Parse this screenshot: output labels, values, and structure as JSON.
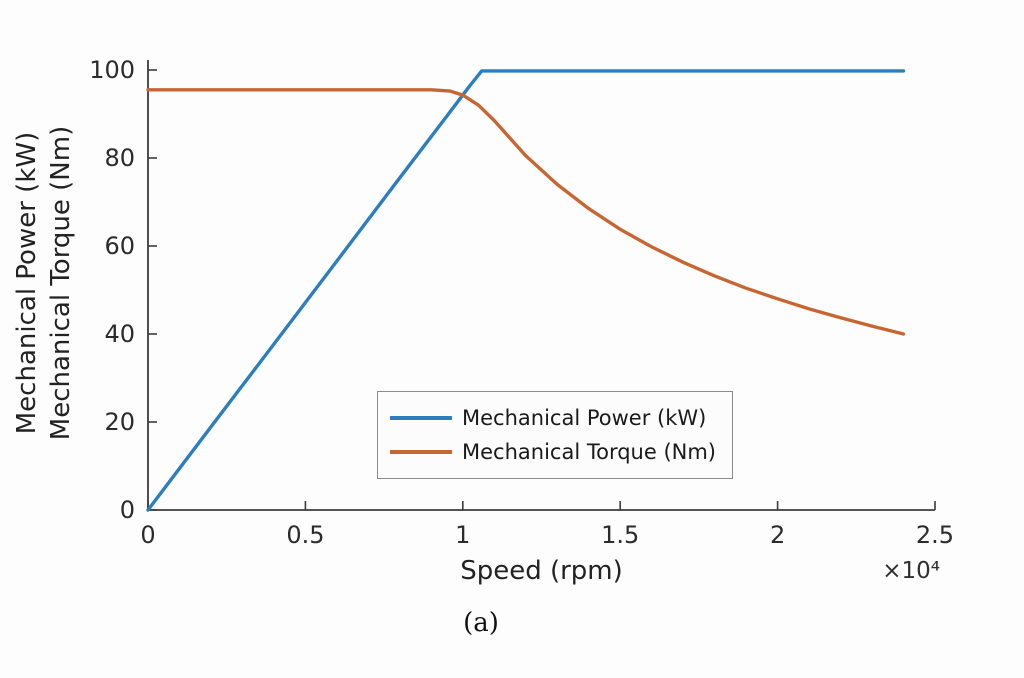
{
  "chart_data": {
    "type": "line",
    "title": "",
    "xlabel": "Speed (rpm)",
    "ylabel_lines": [
      "Mechanical Power (kW)",
      "Mechanical Torque (Nm)"
    ],
    "x_exponent_label": "×10⁴",
    "caption": "(a)",
    "xlim": [
      0,
      25000
    ],
    "ylim": [
      0,
      100
    ],
    "xticks": [
      0,
      5000,
      10000,
      15000,
      20000,
      25000
    ],
    "xtick_labels": [
      "0",
      "0.5",
      "1",
      "1.5",
      "2",
      "2.5"
    ],
    "yticks": [
      0,
      20,
      40,
      60,
      80,
      100
    ],
    "ytick_labels": [
      "0",
      "20",
      "40",
      "60",
      "80",
      "100"
    ],
    "grid": false,
    "axis_color": "#3c3c3c",
    "tick_text_color": "#2b2b2b",
    "legend_position": "inside-bottom-center",
    "series": [
      {
        "name": "Mechanical Power (kW)",
        "color": "#2d7ebc",
        "x": [
          0,
          2000,
          4000,
          6000,
          8000,
          9500,
          10200,
          10600,
          12000,
          16000,
          20000,
          24000
        ],
        "y": [
          0,
          18.9,
          37.7,
          56.6,
          75.5,
          89.6,
          96.2,
          99.8,
          99.8,
          99.8,
          99.8,
          99.8
        ]
      },
      {
        "name": "Mechanical Torque (Nm)",
        "color": "#c66733",
        "x": [
          0,
          2000,
          4000,
          6000,
          8000,
          9000,
          9600,
          10000,
          10500,
          11000,
          12000,
          13000,
          14000,
          15000,
          16000,
          17000,
          18000,
          19000,
          20000,
          21000,
          22000,
          23000,
          24000
        ],
        "y": [
          95.5,
          95.5,
          95.5,
          95.5,
          95.5,
          95.5,
          95.2,
          94.3,
          92.0,
          88.5,
          80.5,
          74.0,
          68.5,
          63.8,
          59.8,
          56.3,
          53.2,
          50.4,
          48.0,
          45.7,
          43.7,
          41.8,
          40.0
        ]
      }
    ]
  }
}
